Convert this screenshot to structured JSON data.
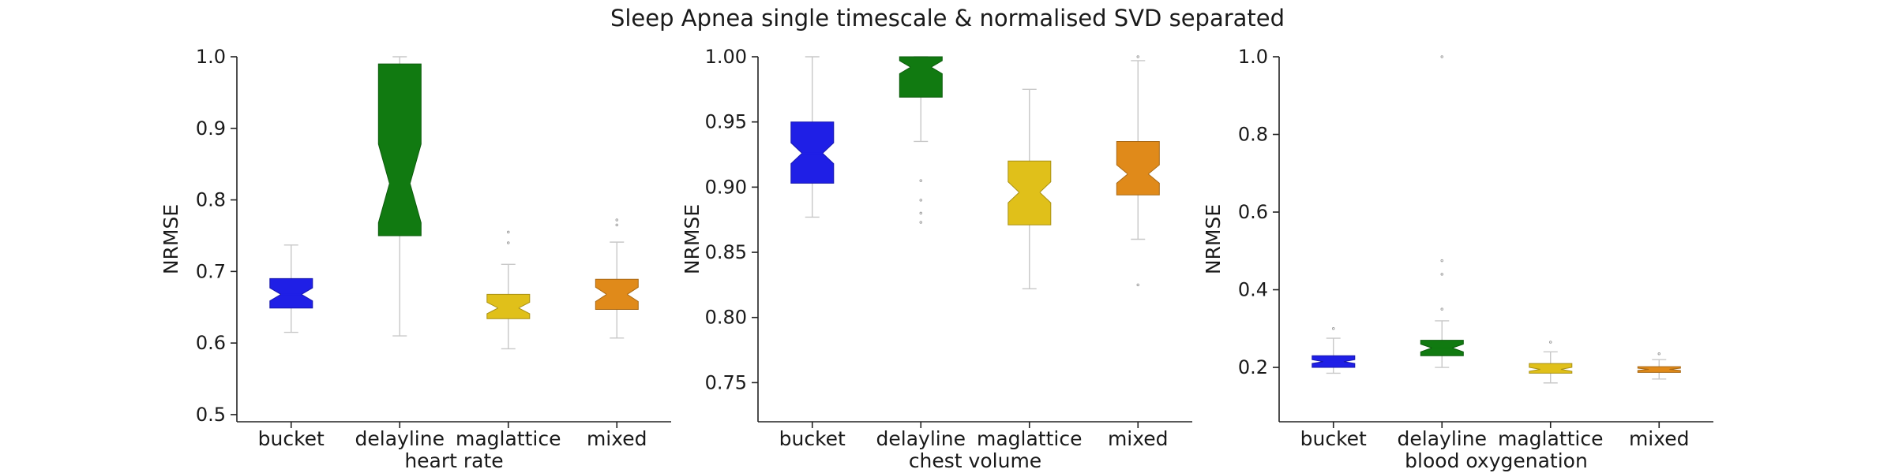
{
  "title": "Sleep Apnea single timescale & normalised SVD separated",
  "chart_data": [
    {
      "type": "box",
      "xlabel": "heart rate",
      "ylabel": "NRMSE",
      "ylim": [
        0.49,
        1.0
      ],
      "yticks": [
        "0.5",
        "0.6",
        "0.7",
        "0.8",
        "0.9",
        "1.0"
      ],
      "notched": true,
      "categories": [
        "bucket",
        "delayline",
        "maglattice",
        "mixed"
      ],
      "colors": [
        "#1f1fe6",
        "#117a11",
        "#e0c01a",
        "#e08a1a"
      ],
      "boxes": [
        {
          "whislo": 0.615,
          "q1": 0.649,
          "med": 0.668,
          "q3": 0.69,
          "whishi": 0.737,
          "notch": [
            0.659,
            0.677
          ],
          "fliers": []
        },
        {
          "whislo": 0.61,
          "q1": 0.75,
          "med": 0.823,
          "q3": 0.99,
          "whishi": 1.0,
          "notch": [
            0.768,
            0.878
          ],
          "fliers": []
        },
        {
          "whislo": 0.592,
          "q1": 0.634,
          "med": 0.649,
          "q3": 0.668,
          "whishi": 0.71,
          "notch": [
            0.641,
            0.657
          ],
          "fliers": [
            0.74,
            0.755
          ]
        },
        {
          "whislo": 0.607,
          "q1": 0.647,
          "med": 0.668,
          "q3": 0.689,
          "whishi": 0.741,
          "notch": [
            0.658,
            0.678
          ],
          "fliers": [
            0.765,
            0.772
          ]
        }
      ]
    },
    {
      "type": "box",
      "xlabel": "chest volume",
      "ylabel": "NRMSE",
      "ylim": [
        0.72,
        1.0
      ],
      "yticks": [
        "0.75",
        "0.80",
        "0.85",
        "0.90",
        "0.95",
        "1.00"
      ],
      "notched": true,
      "categories": [
        "bucket",
        "delayline",
        "maglattice",
        "mixed"
      ],
      "colors": [
        "#1f1fe6",
        "#117a11",
        "#e0c01a",
        "#e08a1a"
      ],
      "boxes": [
        {
          "whislo": 0.877,
          "q1": 0.903,
          "med": 0.926,
          "q3": 0.95,
          "whishi": 1.0,
          "notch": [
            0.918,
            0.934
          ],
          "fliers": []
        },
        {
          "whislo": 0.935,
          "q1": 0.969,
          "med": 0.992,
          "q3": 1.0,
          "whishi": 1.0,
          "notch": [
            0.987,
            0.997
          ],
          "fliers": [
            0.873,
            0.88,
            0.89,
            0.905
          ]
        },
        {
          "whislo": 0.822,
          "q1": 0.871,
          "med": 0.896,
          "q3": 0.92,
          "whishi": 0.975,
          "notch": [
            0.888,
            0.904
          ],
          "fliers": []
        },
        {
          "whislo": 0.86,
          "q1": 0.894,
          "med": 0.91,
          "q3": 0.935,
          "whishi": 0.997,
          "notch": [
            0.903,
            0.917
          ],
          "fliers": [
            0.825,
            1.0
          ]
        }
      ]
    },
    {
      "type": "box",
      "xlabel": "blood oxygenation",
      "ylabel": "NRMSE",
      "ylim": [
        0.06,
        1.0
      ],
      "yticks": [
        "0.2",
        "0.4",
        "0.6",
        "0.8",
        "1.0"
      ],
      "notched": true,
      "categories": [
        "bucket",
        "delayline",
        "maglattice",
        "mixed"
      ],
      "colors": [
        "#1f1fe6",
        "#117a11",
        "#e0c01a",
        "#e08a1a"
      ],
      "boxes": [
        {
          "whislo": 0.185,
          "q1": 0.2,
          "med": 0.215,
          "q3": 0.23,
          "whishi": 0.275,
          "notch": [
            0.21,
            0.22
          ],
          "fliers": [
            0.3
          ]
        },
        {
          "whislo": 0.2,
          "q1": 0.23,
          "med": 0.25,
          "q3": 0.27,
          "whishi": 0.32,
          "notch": [
            0.24,
            0.26
          ],
          "fliers": [
            0.35,
            0.44,
            0.475,
            1.0
          ]
        },
        {
          "whislo": 0.16,
          "q1": 0.185,
          "med": 0.195,
          "q3": 0.21,
          "whishi": 0.24,
          "notch": [
            0.19,
            0.2
          ],
          "fliers": [
            0.265
          ]
        },
        {
          "whislo": 0.17,
          "q1": 0.187,
          "med": 0.195,
          "q3": 0.202,
          "whishi": 0.22,
          "notch": [
            0.192,
            0.198
          ],
          "fliers": [
            0.235
          ]
        }
      ]
    }
  ]
}
